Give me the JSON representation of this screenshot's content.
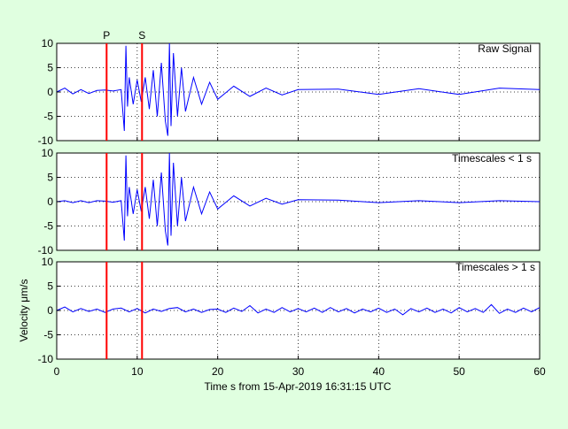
{
  "colors": {
    "background": "#e0ffe0",
    "signal": "#0000ff",
    "marker": "#ff0000",
    "axes": "#000000"
  },
  "x_axis": {
    "label": "Time s from 15-Apr-2019 16:31:15 UTC",
    "xlim": [
      0,
      60
    ],
    "ticks": [
      "0",
      "10",
      "20",
      "30",
      "40",
      "50",
      "60"
    ]
  },
  "y_axis": {
    "label": "Velocity μm/s",
    "ylim": [
      -10,
      10
    ],
    "ticks": [
      "10",
      "5",
      "0",
      "-5",
      "-10"
    ]
  },
  "markers": [
    {
      "label": "P",
      "time": 6.2
    },
    {
      "label": "S",
      "time": 10.6
    }
  ],
  "chart_data": [
    {
      "type": "line",
      "title": "Raw Signal",
      "xlim": [
        0,
        60
      ],
      "ylim": [
        -10,
        10
      ],
      "grid": true,
      "series": [
        {
          "x": [
            0,
            1,
            2,
            3,
            4,
            5,
            6,
            7,
            8,
            8.4,
            8.6,
            8.8,
            9,
            9.5,
            10,
            10.5,
            11,
            11.5,
            12,
            12.5,
            13,
            13.5,
            13.8,
            14,
            14.2,
            14.5,
            15,
            15.5,
            16,
            17,
            18,
            19,
            20,
            22,
            24,
            26,
            28,
            30,
            35,
            40,
            45,
            50,
            55,
            60
          ],
          "y": [
            0,
            0.8,
            -0.4,
            0.5,
            -0.3,
            0.3,
            0.4,
            0.2,
            0.5,
            -8,
            9.5,
            -3,
            3,
            -2.5,
            2.5,
            -2,
            3,
            -3.5,
            4.5,
            -5,
            6,
            -6,
            -9,
            10,
            -7,
            8,
            -5,
            5,
            -4,
            3,
            -2.5,
            2,
            -1.5,
            1.2,
            -0.9,
            0.8,
            -0.6,
            0.5,
            0.6,
            -0.5,
            0.7,
            -0.5,
            0.8,
            0.5
          ]
        }
      ]
    },
    {
      "type": "line",
      "title": "Timescales < 1 s",
      "xlim": [
        0,
        60
      ],
      "ylim": [
        -10,
        10
      ],
      "grid": true,
      "series": [
        {
          "x": [
            0,
            1,
            2,
            3,
            4,
            5,
            6,
            7,
            8,
            8.4,
            8.6,
            8.8,
            9,
            9.5,
            10,
            10.5,
            11,
            11.5,
            12,
            12.5,
            13,
            13.5,
            13.8,
            14,
            14.2,
            14.5,
            15,
            15.5,
            16,
            17,
            18,
            19,
            20,
            22,
            24,
            26,
            28,
            30,
            35,
            40,
            45,
            50,
            55,
            60
          ],
          "y": [
            0,
            0.2,
            -0.2,
            0.2,
            -0.2,
            0.2,
            0.1,
            -0.1,
            0.2,
            -8,
            9.5,
            -3,
            3,
            -2.5,
            2.5,
            -2,
            3,
            -3.5,
            4.5,
            -5,
            6,
            -6,
            -9,
            10,
            -7,
            8,
            -5,
            5,
            -4,
            3,
            -2.5,
            2,
            -1.5,
            1.2,
            -0.9,
            0.7,
            -0.5,
            0.4,
            0.3,
            -0.2,
            0.2,
            -0.2,
            0.2,
            0
          ]
        }
      ]
    },
    {
      "type": "line",
      "title": "Timescales > 1 s",
      "xlim": [
        0,
        60
      ],
      "ylim": [
        -10,
        10
      ],
      "grid": true,
      "series": [
        {
          "x": [
            0,
            1,
            2,
            3,
            4,
            5,
            6,
            7,
            8,
            9,
            10,
            11,
            12,
            13,
            14,
            15,
            16,
            17,
            18,
            19,
            20,
            21,
            22,
            23,
            24,
            25,
            26,
            27,
            28,
            29,
            30,
            31,
            32,
            33,
            34,
            35,
            36,
            37,
            38,
            39,
            40,
            41,
            42,
            43,
            44,
            45,
            46,
            47,
            48,
            49,
            50,
            51,
            52,
            53,
            54,
            55,
            56,
            57,
            58,
            59,
            60
          ],
          "y": [
            0,
            0.7,
            -0.3,
            0.4,
            -0.2,
            0.3,
            -0.4,
            0.3,
            0.5,
            -0.3,
            0.4,
            -0.5,
            0.3,
            -0.2,
            0.4,
            0.6,
            -0.3,
            0.3,
            -0.4,
            0.2,
            0.3,
            -0.4,
            0.5,
            -0.2,
            1.0,
            -0.5,
            0.3,
            -0.4,
            0.6,
            -0.3,
            0.4,
            -0.3,
            0.5,
            -0.4,
            0.6,
            -0.3,
            0.4,
            -0.5,
            0.3,
            -0.3,
            0.5,
            -0.4,
            0.3,
            -0.9,
            0.4,
            -0.3,
            0.5,
            -0.4,
            0.3,
            -0.5,
            0.6,
            -0.3,
            0.4,
            -0.4,
            1.2,
            -0.6,
            0.3,
            -0.4,
            0.5,
            -0.3,
            0.6
          ]
        }
      ]
    }
  ]
}
